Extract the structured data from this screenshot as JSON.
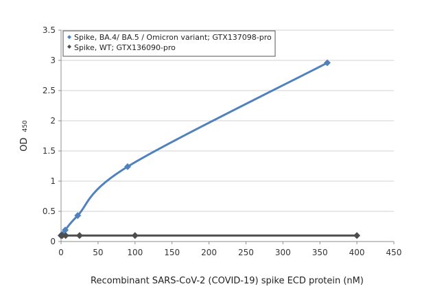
{
  "chart_data": {
    "type": "line",
    "title": "",
    "xlabel": "Recombinant SARS-CoV-2 (COVID-19) spike ECD protein (nM)",
    "ylabel": "OD",
    "ylabel_subscript": "450",
    "xlim": [
      0,
      450
    ],
    "ylim": [
      0,
      3.5
    ],
    "xticks": [
      0,
      50,
      100,
      150,
      200,
      250,
      300,
      350,
      400,
      450
    ],
    "yticks": [
      0,
      0.5,
      1,
      1.5,
      2,
      2.5,
      3,
      3.5
    ],
    "grid": "horizontal",
    "legend_position": "top-left",
    "series": [
      {
        "name": "Spike, BA.4/ BA.5 / Omicron variant; GTX137098-pro",
        "color": "#4f81bd",
        "marker": "diamond",
        "line": "smooth",
        "x": [
          0,
          1.4,
          5.6,
          22.5,
          90,
          360
        ],
        "y": [
          0.1,
          0.12,
          0.19,
          0.43,
          1.24,
          2.96
        ]
      },
      {
        "name": "Spike, WT; GTX136090-pro",
        "color": "#4d4d4d",
        "marker": "diamond",
        "line": "straight",
        "x": [
          0,
          1.6,
          6.2,
          25,
          100,
          400
        ],
        "y": [
          0.1,
          0.1,
          0.1,
          0.1,
          0.1,
          0.1
        ]
      }
    ]
  }
}
